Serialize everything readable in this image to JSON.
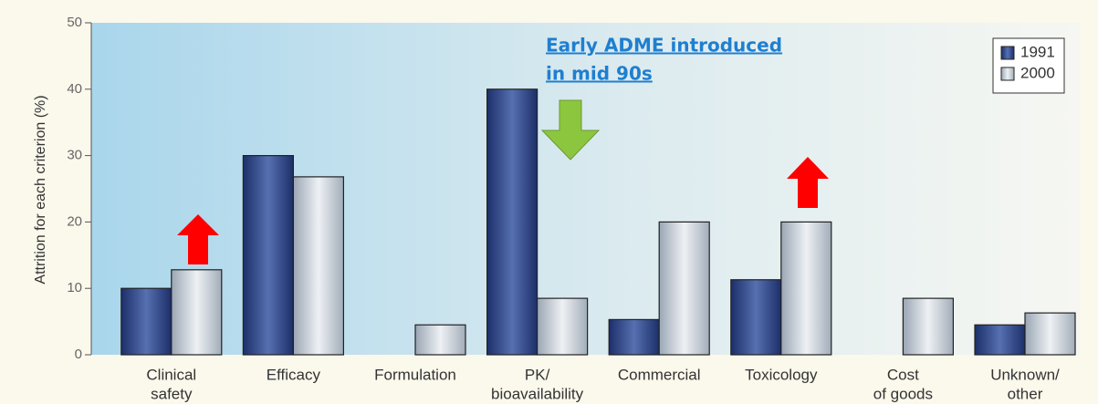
{
  "chart_data": {
    "type": "bar",
    "y_label": "Attrition for each criterion (%)",
    "annotation": [
      "Early ADME introduced",
      "in mid 90s"
    ],
    "categories": [
      [
        "Clinical",
        "safety"
      ],
      [
        "Efficacy"
      ],
      [
        "Formulation"
      ],
      [
        "PK/",
        "bioavailability"
      ],
      [
        "Commercial"
      ],
      [
        "Toxicology"
      ],
      [
        "Cost",
        "of goods"
      ],
      [
        "Unknown/",
        "other"
      ]
    ],
    "series": [
      {
        "name": "1991",
        "color": "#2f4f92",
        "values": [
          10,
          30,
          null,
          40,
          5.3,
          11.3,
          null,
          4.5
        ]
      },
      {
        "name": "2000",
        "color": "#c8d0da",
        "values": [
          12.8,
          26.8,
          4.5,
          8.5,
          20,
          20,
          8.5,
          6.3
        ]
      }
    ],
    "ylim": [
      0,
      50
    ],
    "yticks": [
      0,
      10,
      20,
      30,
      40,
      50
    ],
    "legend": "upper right"
  }
}
